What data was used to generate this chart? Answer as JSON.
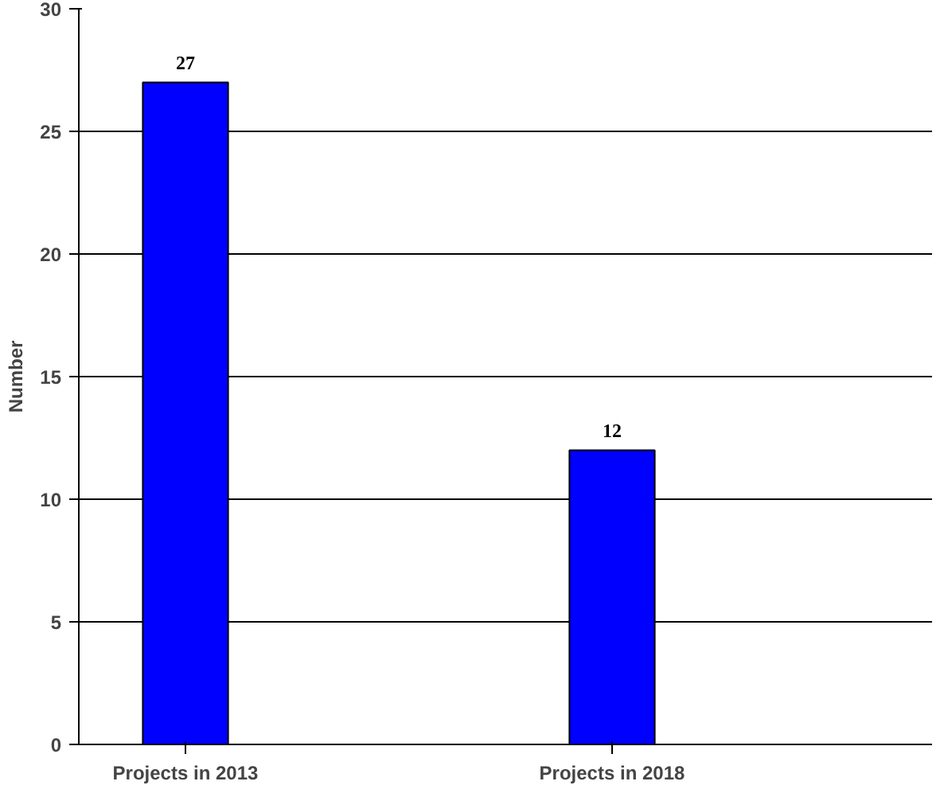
{
  "chart_data": {
    "type": "bar",
    "ylabel": "Number",
    "categories": [
      "Projects in 2013",
      null,
      "Projects in 2018",
      null
    ],
    "values": [
      27,
      null,
      12,
      null
    ],
    "color": "#0000ff",
    "ylim": [
      0,
      30
    ],
    "yticks": [
      0,
      5,
      10,
      15,
      20,
      25,
      30
    ],
    "grid": "y",
    "data_labels": true
  }
}
